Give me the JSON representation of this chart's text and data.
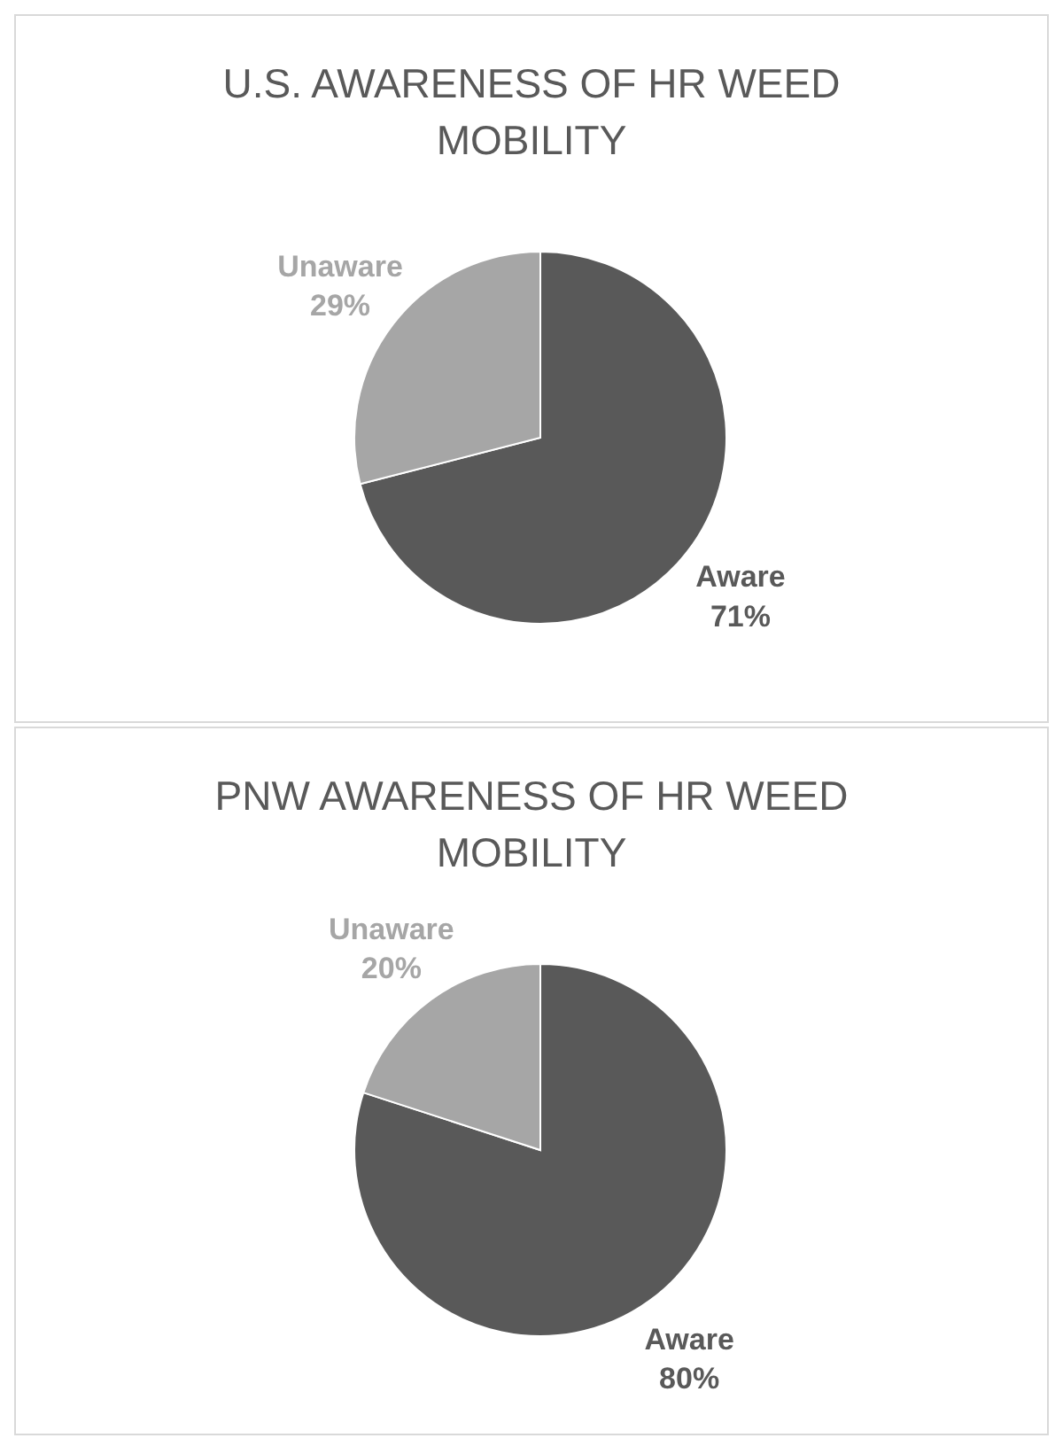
{
  "chart_data": [
    {
      "type": "pie",
      "title": "U.S. AWARENESS OF HR WEED MOBILITY",
      "categories": [
        "Aware",
        "Unaware"
      ],
      "values": [
        71,
        29
      ],
      "colors": [
        "#595959",
        "#a6a6a6"
      ],
      "value_labels": [
        "71%",
        "29%"
      ]
    },
    {
      "type": "pie",
      "title": "PNW AWARENESS OF HR WEED MOBILITY",
      "categories": [
        "Aware",
        "Unaware"
      ],
      "values": [
        80,
        20
      ],
      "colors": [
        "#595959",
        "#a6a6a6"
      ],
      "value_labels": [
        "80%",
        "20%"
      ]
    }
  ]
}
